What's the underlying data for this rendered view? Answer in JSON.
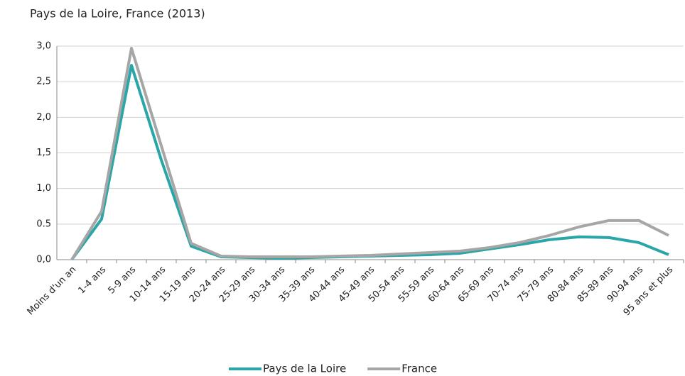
{
  "chart_data": {
    "type": "line",
    "subtitle": "Pays de la Loire, France (2013)",
    "categories": [
      "Moins d'un an",
      "1-4 ans",
      "5-9 ans",
      "10-14 ans",
      "15-19 ans",
      "20-24 ans",
      "25-29 ans",
      "30-34 ans",
      "35-39 ans",
      "40-44 ans",
      "45-49 ans",
      "50-54 ans",
      "55-59 ans",
      "60-64 ans",
      "65-69 ans",
      "70-74 ans",
      "75-79 ans",
      "80-84 ans",
      "85-89 ans",
      "90-94 ans",
      "95 ans et plus"
    ],
    "series": [
      {
        "name": "Pays de la Loire",
        "color": "#2aa6a8",
        "values": [
          0,
          0.57,
          2.73,
          1.4,
          0.19,
          0.04,
          0.03,
          0.02,
          0.03,
          0.04,
          0.05,
          0.06,
          0.07,
          0.09,
          0.15,
          0.21,
          0.28,
          0.32,
          0.31,
          0.24,
          0.07
        ]
      },
      {
        "name": "France",
        "color": "#a6a6a6",
        "values": [
          0,
          0.68,
          2.97,
          1.6,
          0.23,
          0.05,
          0.04,
          0.04,
          0.04,
          0.05,
          0.06,
          0.08,
          0.1,
          0.12,
          0.17,
          0.24,
          0.34,
          0.46,
          0.55,
          0.55,
          0.34
        ]
      }
    ],
    "ylim": [
      0,
      3
    ],
    "yticks": [
      {
        "value": 0,
        "label": "0,0"
      },
      {
        "value": 0.5,
        "label": "0.5"
      },
      {
        "value": 1,
        "label": "1,0"
      },
      {
        "value": 1.5,
        "label": "1,5"
      },
      {
        "value": 2,
        "label": "2,0"
      },
      {
        "value": 2.5,
        "label": "2,5"
      },
      {
        "value": 3,
        "label": "3,0"
      }
    ],
    "grid": true,
    "legend": "bottom"
  }
}
